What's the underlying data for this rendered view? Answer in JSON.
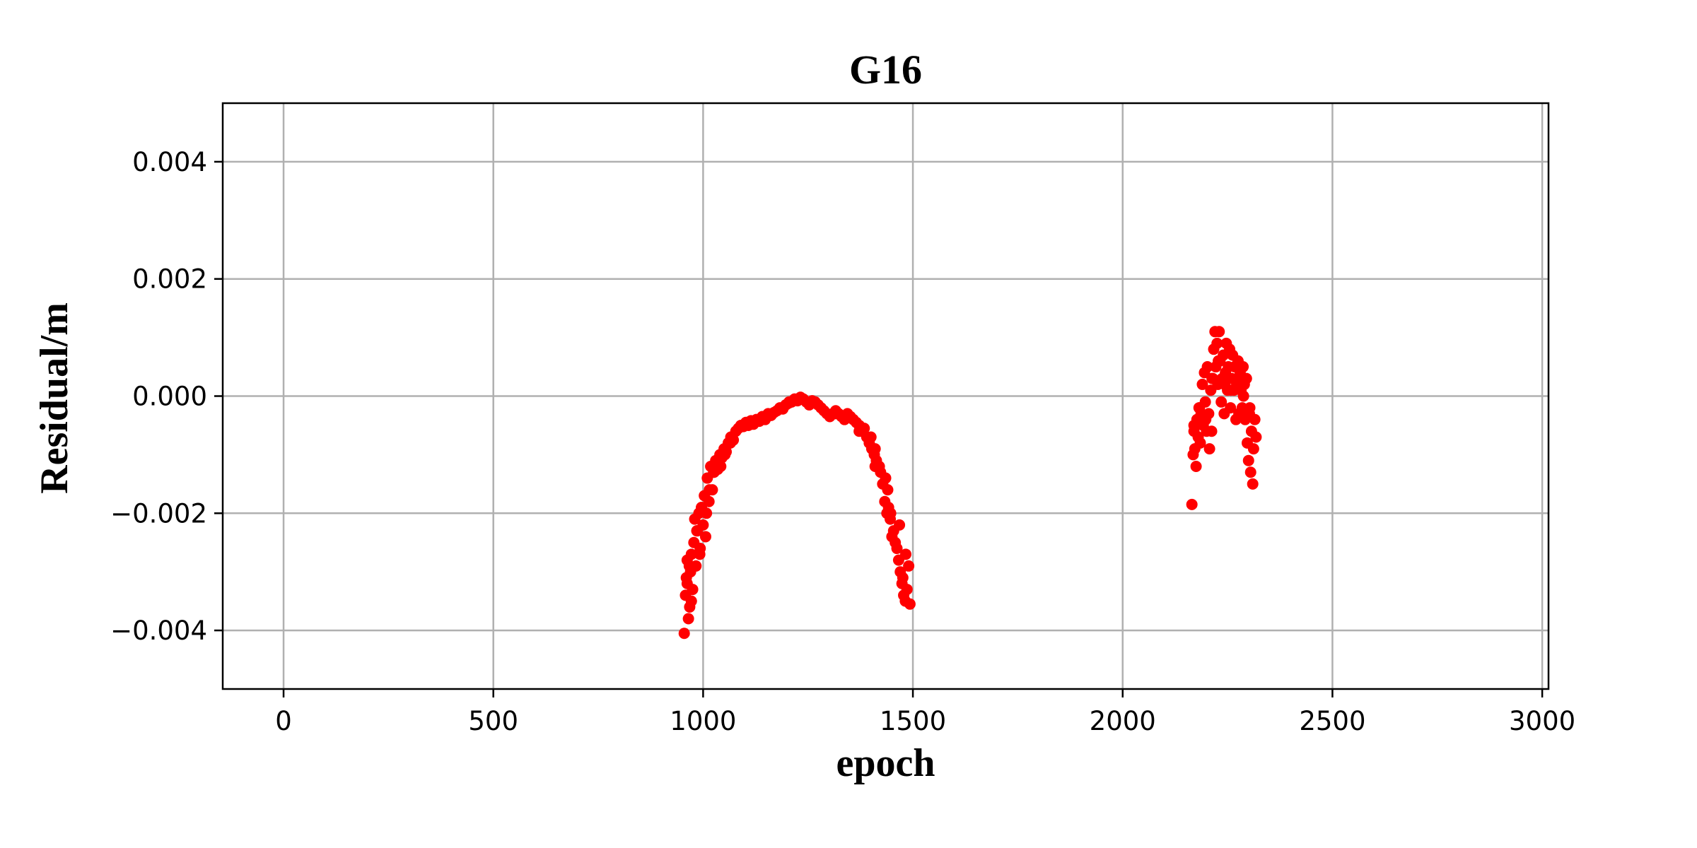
{
  "chart_data": {
    "type": "scatter",
    "title": "G16",
    "xlabel": "epoch",
    "ylabel": "Residual/m",
    "xlim": [
      -145,
      3015
    ],
    "ylim": [
      -0.005,
      0.005
    ],
    "xticks": [
      0,
      500,
      1000,
      1500,
      2000,
      2500,
      3000
    ],
    "xtick_labels": [
      "0",
      "500",
      "1000",
      "1500",
      "2000",
      "2500",
      "3000"
    ],
    "yticks": [
      0.004,
      0.002,
      0.0,
      -0.002,
      -0.004
    ],
    "ytick_labels": [
      "0.004",
      "0.002",
      "0.000",
      "−0.002",
      "−0.004"
    ],
    "grid": true,
    "marker_color": "#ff0000",
    "series": [
      {
        "x": [
          955,
          958,
          960,
          962,
          965,
          968,
          970,
          972,
          975,
          978,
          980,
          983,
          986,
          990,
          993,
          996,
          1000,
          1003,
          1006,
          1010,
          1014,
          1018,
          1022,
          1026,
          1030,
          1035,
          1040,
          1045,
          1050,
          1055,
          1060,
          1066,
          1072,
          1078,
          1084,
          1090,
          1096,
          1102,
          1108,
          1114,
          1120,
          1127,
          1134,
          1141,
          1148,
          1155,
          1162,
          1169,
          1176,
          1183,
          1190,
          1197,
          1204,
          1211,
          1218,
          1225,
          1232,
          1239,
          1246,
          1253,
          1260,
          1267,
          1274,
          1281,
          1288,
          1295,
          1302,
          1309,
          1316,
          1323,
          1330,
          1337,
          1344,
          1351,
          1358,
          1365,
          1372,
          1378,
          1384,
          1390,
          1396,
          1402,
          1408,
          1413,
          1418,
          1423,
          1428,
          1433,
          1438,
          1442,
          1446,
          1450,
          1454,
          1458,
          1462,
          1466,
          1470,
          1474,
          1478,
          1482,
          1486,
          1490,
          1493,
          1483,
          1476,
          1468,
          1447,
          1440,
          1435,
          1420,
          1410,
          1400,
          962,
          967,
          972,
          985,
          992,
          1008,
          1015,
          1025,
          1042,
          1052,
          1065,
          1095,
          1150,
          1205,
          1260,
          1315,
          1372,
          1410
        ],
        "y": [
          -0.00405,
          -0.0034,
          -0.0031,
          -0.0028,
          -0.0038,
          -0.0036,
          -0.003,
          -0.0027,
          -0.0033,
          -0.0025,
          -0.0021,
          -0.0029,
          -0.0023,
          -0.002,
          -0.0026,
          -0.0019,
          -0.0022,
          -0.0017,
          -0.0024,
          -0.0014,
          -0.0018,
          -0.0012,
          -0.0016,
          -0.0013,
          -0.0011,
          -0.00125,
          -0.001,
          -0.00105,
          -0.0009,
          -0.00095,
          -0.0008,
          -0.0007,
          -0.00075,
          -0.0006,
          -0.00055,
          -0.0005,
          -0.00052,
          -0.00045,
          -0.0005,
          -0.00042,
          -0.00048,
          -0.0004,
          -0.00043,
          -0.00035,
          -0.0004,
          -0.0003,
          -0.00033,
          -0.00028,
          -0.00025,
          -0.0002,
          -0.00022,
          -0.00015,
          -0.00012,
          -0.0001,
          -5e-05,
          -8e-05,
          -2e-05,
          -5e-05,
          -0.0001,
          -0.00015,
          -8e-05,
          -0.0001,
          -0.00015,
          -0.0002,
          -0.00025,
          -0.0003,
          -0.00035,
          -0.0003,
          -0.00025,
          -0.0003,
          -0.00035,
          -0.0004,
          -0.0003,
          -0.00035,
          -0.0004,
          -0.00045,
          -0.0005,
          -0.0006,
          -0.00055,
          -0.0007,
          -0.0008,
          -0.0009,
          -0.001,
          -0.0011,
          -0.0012,
          -0.0013,
          -0.0015,
          -0.0018,
          -0.002,
          -0.0019,
          -0.0021,
          -0.0024,
          -0.0023,
          -0.0025,
          -0.0026,
          -0.0028,
          -0.003,
          -0.0032,
          -0.0034,
          -0.0035,
          -0.0033,
          -0.0029,
          -0.00355,
          -0.0027,
          -0.0031,
          -0.0022,
          -0.002,
          -0.0016,
          -0.0014,
          -0.0012,
          -0.0009,
          -0.0007,
          -0.0032,
          -0.0029,
          -0.0035,
          -0.0023,
          -0.0027,
          -0.002,
          -0.0016,
          -0.0013,
          -0.0012,
          -0.001,
          -0.0008,
          -0.0005,
          -0.00035,
          -0.0001,
          -0.0001,
          -0.0003,
          -0.0006,
          -0.0012
        ],
        "name": ""
      },
      {
        "x": [
          2165,
          2168,
          2170,
          2172,
          2175,
          2177,
          2180,
          2182,
          2185,
          2187,
          2190,
          2192,
          2195,
          2197,
          2200,
          2202,
          2205,
          2207,
          2210,
          2212,
          2215,
          2217,
          2220,
          2222,
          2225,
          2227,
          2230,
          2232,
          2235,
          2237,
          2240,
          2242,
          2245,
          2247,
          2250,
          2252,
          2255,
          2257,
          2260,
          2262,
          2265,
          2267,
          2270,
          2272,
          2275,
          2277,
          2280,
          2282,
          2285,
          2287,
          2290,
          2292,
          2295,
          2297,
          2300,
          2302,
          2305,
          2307,
          2310,
          2312,
          2315,
          2318,
          2170,
          2183,
          2198,
          2213,
          2228,
          2243,
          2258,
          2273,
          2288,
          2303
        ],
        "y": [
          -0.00185,
          -0.001,
          -0.0006,
          -0.0009,
          -0.0012,
          -0.0004,
          -0.0007,
          -0.0002,
          -0.0008,
          -0.0003,
          0.0002,
          -0.0005,
          0.0004,
          -0.0001,
          -0.0006,
          0.0005,
          -0.0003,
          -0.0009,
          0.0001,
          -0.0006,
          0.0003,
          0.0008,
          0.0011,
          0.0005,
          0.0009,
          0.0002,
          0.0011,
          0.0006,
          -0.0001,
          0.0003,
          0.0007,
          -0.0003,
          0.0004,
          0.0009,
          0.0001,
          0.0005,
          0.0008,
          -0.0002,
          0.0003,
          0.0007,
          0.0001,
          0.0005,
          -0.0004,
          0.0002,
          0.0006,
          -0.0003,
          0.0004,
          0.0001,
          -0.0002,
          0.0005,
          0.0002,
          -0.0004,
          0.0003,
          -0.0008,
          -0.0011,
          -0.0003,
          -0.0013,
          -0.0006,
          -0.0015,
          -0.0009,
          -0.0004,
          -0.0007,
          -0.0005,
          -0.0002,
          -0.0004,
          0.0003,
          0.0006,
          0.0002,
          0.0001,
          0.0003,
          0.0,
          -0.0002
        ],
        "name": ""
      }
    ]
  }
}
